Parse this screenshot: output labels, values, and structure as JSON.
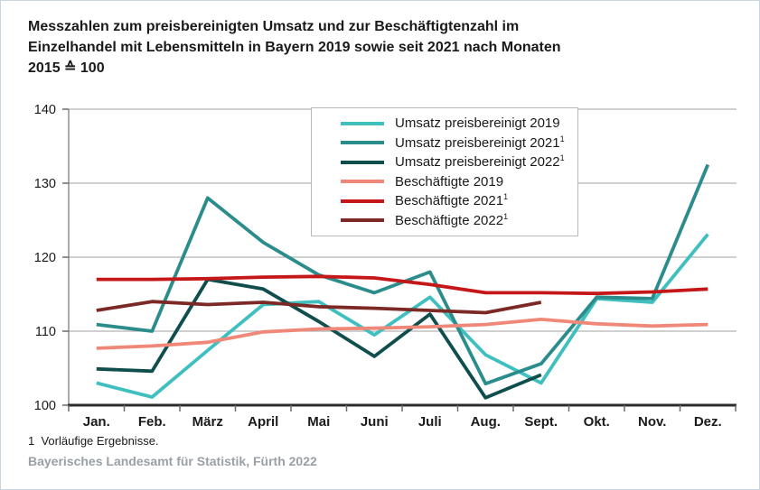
{
  "title": {
    "line1": "Messzahlen zum preisbereinigten Umsatz und zur Beschäftigtenzahl im",
    "line2": "Einzelhandel mit Lebensmitteln in Bayern 2019 sowie seit 2021 nach Monaten",
    "line3": "2015 ≙ 100"
  },
  "footnote": "1  Vorläufige Ergebnisse.",
  "source": "Bayerisches Landesamt für Statistik, Fürth 2022",
  "colors": {
    "axis_x": "#2b2b2b",
    "axis_y": "#8f8f8f",
    "grid": "#b3b3b3",
    "tick": "#6b6b6b",
    "label": "#1a1a1a",
    "source_text": "#9aa0a5",
    "card_border": "#c9d5e0"
  },
  "chart_data": {
    "type": "line",
    "title": "Messzahlen zum preisbereinigten Umsatz und zur Beschäftigtenzahl im Einzelhandel mit Lebensmitteln in Bayern 2019 sowie seit 2021 nach Monaten",
    "subtitle": "2015 ≙ 100",
    "xlabel": "",
    "ylabel": "",
    "ylim": [
      100,
      140
    ],
    "yticks": [
      100,
      110,
      120,
      130,
      140
    ],
    "grid": true,
    "legend_position": "top-center-inside",
    "categories": [
      "Jan.",
      "Feb.",
      "März",
      "April",
      "Mai",
      "Juni",
      "Juli",
      "Aug.",
      "Sept.",
      "Okt.",
      "Nov.",
      "Dez."
    ],
    "series": [
      {
        "name": "Umsatz preisbereinigt 2019",
        "footnote_mark": "",
        "color": "#3fbfbf",
        "values": [
          103.0,
          101.1,
          107.4,
          113.6,
          114.0,
          109.5,
          114.6,
          106.8,
          103.0,
          114.4,
          113.9,
          123.1
        ]
      },
      {
        "name": "Umsatz preisbereinigt 2021",
        "footnote_mark": "1",
        "color": "#2b8c8c",
        "values": [
          110.9,
          110.0,
          128.0,
          122.0,
          117.6,
          115.2,
          118.0,
          102.9,
          105.6,
          114.6,
          114.4,
          132.5
        ]
      },
      {
        "name": "Umsatz preisbereinigt 2022",
        "footnote_mark": "1",
        "color": "#0f4e4d",
        "values": [
          104.9,
          104.6,
          117.0,
          115.7,
          111.3,
          106.6,
          112.3,
          101.0,
          104.1,
          null,
          null,
          null
        ]
      },
      {
        "name": "Beschäftigte 2019",
        "footnote_mark": "",
        "color": "#ef8878",
        "values": [
          107.7,
          108.0,
          108.5,
          109.9,
          110.3,
          110.4,
          110.6,
          110.9,
          111.6,
          111.0,
          110.7,
          110.9
        ]
      },
      {
        "name": "Beschäftigte 2021",
        "footnote_mark": "1",
        "color": "#c51718",
        "values": [
          117.0,
          117.0,
          117.1,
          117.3,
          117.4,
          117.2,
          116.3,
          115.2,
          115.2,
          115.1,
          115.3,
          115.7
        ]
      },
      {
        "name": "Beschäftigte 2022",
        "footnote_mark": "1",
        "color": "#7c2926",
        "values": [
          112.8,
          114.0,
          113.6,
          113.9,
          113.3,
          113.1,
          112.8,
          112.5,
          113.9,
          null,
          null,
          null
        ]
      }
    ]
  }
}
